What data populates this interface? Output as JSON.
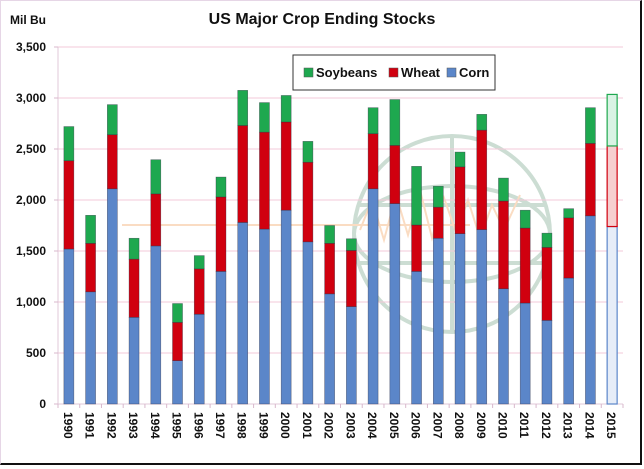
{
  "chart_data": {
    "type": "bar",
    "stacked": true,
    "title": "US Major Crop Ending Stocks",
    "ylabel": "Mil Bu",
    "xlabel": "",
    "ylim": [
      0,
      3500
    ],
    "yticks": [
      0,
      500,
      1000,
      1500,
      2000,
      2500,
      3000,
      3500
    ],
    "ytick_labels": [
      "0",
      "500",
      "1,000",
      "1,500",
      "2,000",
      "2,500",
      "3,000",
      "3,500"
    ],
    "grid": true,
    "legend_position": "top-center",
    "categories": [
      "1990",
      "1991",
      "1992",
      "1993",
      "1994",
      "1995",
      "1996",
      "1997",
      "1998",
      "1999",
      "2000",
      "2001",
      "2002",
      "2003",
      "2004",
      "2005",
      "2006",
      "2007",
      "2008",
      "2009",
      "2010",
      "2011",
      "2012",
      "2013",
      "2014",
      "2015"
    ],
    "series": [
      {
        "name": "Corn",
        "color": "#5b86c9",
        "values": [
          1520,
          1100,
          2110,
          850,
          1550,
          425,
          880,
          1300,
          1780,
          1715,
          1900,
          1590,
          1080,
          955,
          2110,
          1965,
          1300,
          1625,
          1670,
          1710,
          1130,
          990,
          820,
          1235,
          1845,
          1740
        ]
      },
      {
        "name": "Wheat",
        "color": "#d0000f",
        "values": [
          865,
          475,
          530,
          570,
          510,
          375,
          445,
          730,
          950,
          950,
          865,
          780,
          495,
          550,
          540,
          570,
          455,
          305,
          655,
          975,
          860,
          735,
          715,
          590,
          710,
          790
        ]
      },
      {
        "name": "Soybeans",
        "color": "#1ea84f",
        "values": [
          335,
          275,
          295,
          205,
          335,
          185,
          130,
          195,
          345,
          290,
          260,
          205,
          175,
          115,
          255,
          450,
          575,
          205,
          145,
          155,
          225,
          175,
          140,
          90,
          350,
          505
        ]
      }
    ],
    "projected_categories": [
      "2015"
    ],
    "legend": [
      "Soybeans",
      "Wheat",
      "Corn"
    ]
  }
}
